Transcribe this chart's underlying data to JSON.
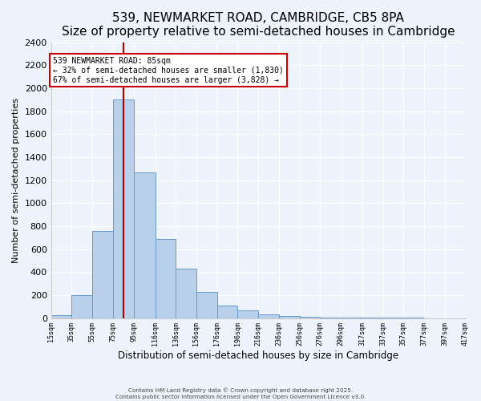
{
  "title": "539, NEWMARKET ROAD, CAMBRIDGE, CB5 8PA",
  "subtitle": "Size of property relative to semi-detached houses in Cambridge",
  "xlabel": "Distribution of semi-detached houses by size in Cambridge",
  "ylabel": "Number of semi-detached properties",
  "bar_edges": [
    15,
    35,
    55,
    75,
    95,
    116,
    136,
    156,
    176,
    196,
    216,
    236,
    256,
    276,
    296,
    317,
    337,
    357,
    377,
    397,
    417
  ],
  "bar_heights": [
    25,
    200,
    760,
    1900,
    1270,
    690,
    430,
    230,
    110,
    65,
    35,
    15,
    8,
    5,
    3,
    2,
    1,
    1,
    0,
    0
  ],
  "tick_labels": [
    "15sqm",
    "35sqm",
    "55sqm",
    "75sqm",
    "95sqm",
    "116sqm",
    "136sqm",
    "156sqm",
    "176sqm",
    "196sqm",
    "216sqm",
    "236sqm",
    "256sqm",
    "276sqm",
    "296sqm",
    "317sqm",
    "337sqm",
    "357sqm",
    "377sqm",
    "397sqm",
    "417sqm"
  ],
  "ylim": [
    0,
    2400
  ],
  "yticks": [
    0,
    200,
    400,
    600,
    800,
    1000,
    1200,
    1400,
    1600,
    1800,
    2000,
    2200,
    2400
  ],
  "bar_color": "#b8d0ea",
  "bar_edge_color": "#6699cc",
  "property_size": 85,
  "vline_color": "#aa0000",
  "annotation_line1": "539 NEWMARKET ROAD: 85sqm",
  "annotation_line2": "← 32% of semi-detached houses are smaller (1,830)",
  "annotation_line3": "67% of semi-detached houses are larger (3,828) →",
  "annotation_box_color": "#ffffff",
  "annotation_box_edge_color": "#cc0000",
  "footer_line1": "Contains HM Land Registry data © Crown copyright and database right 2025.",
  "footer_line2": "Contains public sector information licensed under the Open Government Licence v3.0.",
  "background_color": "#eef2fb",
  "grid_color": "#ffffff",
  "title_fontsize": 11,
  "subtitle_fontsize": 9,
  "ylabel_fontsize": 8,
  "xlabel_fontsize": 8.5
}
